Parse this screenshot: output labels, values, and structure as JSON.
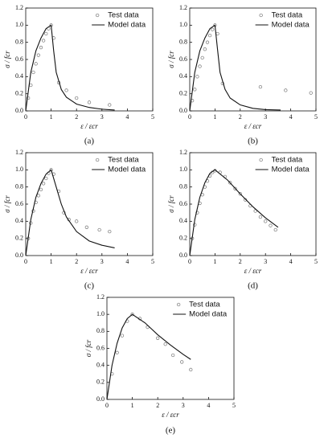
{
  "chart_data": [
    {
      "type": "line",
      "label": "(a)",
      "xlabel": "ε / εcr",
      "ylabel": "σ / fcr",
      "xlim": [
        0,
        5
      ],
      "xticks": [
        0,
        1,
        2,
        3,
        4,
        5
      ],
      "ylim": [
        0,
        1.2
      ],
      "yticks": [
        {
          "value": 0,
          "label": "0.0"
        },
        0.2,
        0.4,
        0.6,
        0.8,
        {
          "value": 1,
          "label": "1.0"
        },
        1.2
      ],
      "series": [
        {
          "name": "Test data",
          "mode": "markers",
          "color": "#777777",
          "x": [
            0.1,
            0.2,
            0.3,
            0.4,
            0.5,
            0.6,
            0.7,
            0.8,
            0.9,
            1.0,
            1.1,
            1.3,
            1.6,
            2.0,
            2.5,
            3.3
          ],
          "values": [
            0.15,
            0.3,
            0.45,
            0.55,
            0.65,
            0.74,
            0.82,
            0.9,
            0.96,
            1.0,
            0.85,
            0.33,
            0.24,
            0.15,
            0.1,
            0.07
          ]
        },
        {
          "name": "Model data",
          "mode": "line",
          "color": "#111111",
          "x": [
            0,
            0.2,
            0.4,
            0.6,
            0.8,
            1.0,
            1.1,
            1.2,
            1.4,
            1.6,
            2.0,
            2.5,
            3.0,
            3.5
          ],
          "values": [
            0,
            0.45,
            0.7,
            0.85,
            0.96,
            1.0,
            0.7,
            0.45,
            0.25,
            0.16,
            0.08,
            0.04,
            0.02,
            0.01
          ]
        }
      ]
    },
    {
      "type": "line",
      "label": "(b)",
      "xlabel": "ε / εcr",
      "ylabel": "σ / fcr",
      "xlim": [
        0,
        5
      ],
      "xticks": [
        0,
        1,
        2,
        3,
        4,
        5
      ],
      "ylim": [
        0,
        1.2
      ],
      "yticks": [
        {
          "value": 0,
          "label": "0.0"
        },
        0.2,
        0.4,
        0.6,
        0.8,
        {
          "value": 1,
          "label": "1.0"
        },
        1.2
      ],
      "series": [
        {
          "name": "Test data",
          "mode": "markers",
          "color": "#777777",
          "x": [
            0.1,
            0.2,
            0.3,
            0.4,
            0.5,
            0.6,
            0.7,
            0.8,
            0.9,
            1.0,
            1.1,
            1.3,
            2.8,
            3.8,
            4.8
          ],
          "values": [
            0.12,
            0.25,
            0.4,
            0.52,
            0.62,
            0.72,
            0.8,
            0.88,
            0.95,
            1.0,
            0.9,
            0.32,
            0.28,
            0.24,
            0.21
          ]
        },
        {
          "name": "Model data",
          "mode": "line",
          "color": "#111111",
          "x": [
            0,
            0.2,
            0.4,
            0.6,
            0.8,
            1.0,
            1.1,
            1.2,
            1.4,
            1.6,
            2.0,
            2.5,
            3.0,
            3.6
          ],
          "values": [
            0,
            0.45,
            0.7,
            0.85,
            0.96,
            1.0,
            0.72,
            0.45,
            0.25,
            0.15,
            0.07,
            0.03,
            0.015,
            0.01
          ]
        }
      ]
    },
    {
      "type": "line",
      "label": "(c)",
      "xlabel": "ε / εcr",
      "ylabel": "σ / fcr",
      "xlim": [
        0,
        5
      ],
      "xticks": [
        0,
        1,
        2,
        3,
        4,
        5
      ],
      "ylim": [
        0,
        1.2
      ],
      "yticks": [
        {
          "value": 0,
          "label": "0.0"
        },
        0.2,
        0.4,
        0.6,
        0.8,
        {
          "value": 1,
          "label": "1.0"
        },
        1.2
      ],
      "series": [
        {
          "name": "Test data",
          "mode": "markers",
          "color": "#777777",
          "x": [
            0.1,
            0.2,
            0.3,
            0.4,
            0.5,
            0.6,
            0.7,
            0.8,
            0.9,
            1.0,
            1.1,
            1.3,
            1.5,
            1.7,
            2.0,
            2.4,
            2.9,
            3.3
          ],
          "values": [
            0.2,
            0.38,
            0.52,
            0.62,
            0.7,
            0.77,
            0.84,
            0.9,
            0.96,
            1.0,
            0.95,
            0.75,
            0.5,
            0.42,
            0.4,
            0.33,
            0.3,
            0.28
          ]
        },
        {
          "name": "Model data",
          "mode": "line",
          "color": "#111111",
          "x": [
            0,
            0.2,
            0.4,
            0.6,
            0.8,
            1.0,
            1.2,
            1.4,
            1.6,
            2.0,
            2.5,
            3.0,
            3.5
          ],
          "values": [
            0,
            0.42,
            0.68,
            0.84,
            0.95,
            1.0,
            0.8,
            0.6,
            0.45,
            0.28,
            0.17,
            0.12,
            0.09
          ]
        }
      ]
    },
    {
      "type": "line",
      "label": "(d)",
      "xlabel": "ε / εcr",
      "ylabel": "σ / fcr",
      "xlim": [
        0,
        5
      ],
      "xticks": [
        0,
        1,
        2,
        3,
        4,
        5
      ],
      "ylim": [
        0,
        1.2
      ],
      "yticks": [
        {
          "value": 0,
          "label": "0.0"
        },
        0.2,
        0.4,
        0.6,
        0.8,
        {
          "value": 1,
          "label": "1.0"
        },
        1.2
      ],
      "series": [
        {
          "name": "Test data",
          "mode": "markers",
          "color": "#777777",
          "x": [
            0.1,
            0.2,
            0.3,
            0.4,
            0.5,
            0.6,
            0.7,
            0.8,
            0.9,
            1.0,
            1.2,
            1.4,
            1.6,
            1.8,
            2.0,
            2.2,
            2.4,
            2.6,
            2.8,
            3.0,
            3.2,
            3.4
          ],
          "values": [
            0.2,
            0.36,
            0.5,
            0.61,
            0.71,
            0.8,
            0.87,
            0.93,
            0.97,
            0.99,
            0.97,
            0.92,
            0.85,
            0.78,
            0.72,
            0.65,
            0.58,
            0.52,
            0.45,
            0.4,
            0.35,
            0.3
          ]
        },
        {
          "name": "Model data",
          "mode": "line",
          "color": "#111111",
          "x": [
            0,
            0.2,
            0.4,
            0.6,
            0.8,
            1.0,
            1.5,
            2.0,
            2.5,
            3.0,
            3.5
          ],
          "values": [
            0,
            0.42,
            0.68,
            0.85,
            0.96,
            1.0,
            0.88,
            0.72,
            0.57,
            0.44,
            0.33
          ]
        }
      ]
    },
    {
      "type": "line",
      "label": "(e)",
      "xlabel": "ε / εcr",
      "ylabel": "σ / fcr",
      "xlim": [
        0,
        5
      ],
      "xticks": [
        0,
        1,
        2,
        3,
        4,
        5
      ],
      "ylim": [
        0,
        1.2
      ],
      "yticks": [
        {
          "value": 0,
          "label": "0.0"
        },
        0.2,
        0.4,
        0.6,
        0.8,
        {
          "value": 1,
          "label": "1.0"
        },
        1.2
      ],
      "series": [
        {
          "name": "Test data",
          "mode": "markers",
          "color": "#777777",
          "x": [
            0.2,
            0.4,
            0.6,
            0.8,
            1.0,
            1.3,
            1.6,
            2.0,
            2.3,
            2.6,
            2.95,
            3.3
          ],
          "values": [
            0.3,
            0.55,
            0.75,
            0.92,
            1.0,
            0.95,
            0.85,
            0.72,
            0.65,
            0.52,
            0.44,
            0.35
          ]
        },
        {
          "name": "Model data",
          "mode": "line",
          "color": "#111111",
          "x": [
            0,
            0.2,
            0.4,
            0.6,
            0.8,
            1.0,
            1.5,
            2.0,
            2.5,
            3.0,
            3.3
          ],
          "values": [
            0,
            0.4,
            0.66,
            0.84,
            0.95,
            1.0,
            0.9,
            0.76,
            0.64,
            0.53,
            0.47
          ]
        }
      ]
    }
  ]
}
